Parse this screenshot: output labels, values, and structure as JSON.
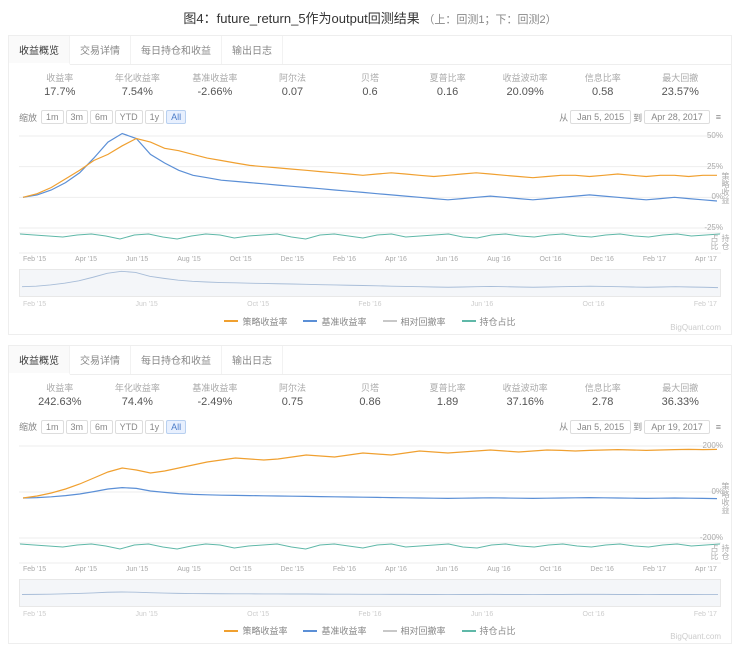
{
  "title_main": "图4：future_return_5作为output回测结果",
  "title_sub": "（上：回测1；下：回测2）",
  "tabs": [
    "收益概览",
    "交易详情",
    "每日持仓和收益",
    "输出日志"
  ],
  "range_label": "缩放",
  "range_buttons": [
    "1m",
    "3m",
    "6m",
    "YTD",
    "1y",
    "All"
  ],
  "range_active": "All",
  "date_from_lbl": "从",
  "date_to_lbl": "到",
  "watermark": "BigQuant.com",
  "metric_labels": [
    "收益率",
    "年化收益率",
    "基准收益率",
    "阿尔法",
    "贝塔",
    "夏普比率",
    "收益波动率",
    "信息比率",
    "最大回撤"
  ],
  "legend_items": [
    {
      "label": "策略收益率",
      "color": "#f0a030"
    },
    {
      "label": "基准收益率",
      "color": "#5b8fd6"
    },
    {
      "label": "相对回撤率",
      "color": "#c8c8c8"
    },
    {
      "label": "持仓占比",
      "color": "#5fb8a8"
    }
  ],
  "xaxis_ticks": [
    "Feb '15",
    "Apr '15",
    "Jun '15",
    "Aug '15",
    "Oct '15",
    "Dec '15",
    "Feb '16",
    "Apr '16",
    "Jun '16",
    "Aug '16",
    "Oct '16",
    "Dec '16",
    "Feb '17",
    "Apr '17"
  ],
  "colors": {
    "strategy": "#f0a030",
    "benchmark": "#5b8fd6",
    "holding": "#5fb8a8",
    "grid": "#eeeeee",
    "nav_line": "#a8bdd8",
    "nav_bg": "#f4f6f9"
  },
  "panels": [
    {
      "metrics": [
        "17.7%",
        "7.54%",
        "-2.66%",
        "0.07",
        "0.6",
        "0.16",
        "20.09%",
        "0.58",
        "23.57%"
      ],
      "date_from": "Jan 5, 2015",
      "date_to": "Apr 28, 2017",
      "yticks": [
        "50%",
        "25%",
        "0%",
        "-25%"
      ],
      "side_label": "策略收益",
      "sub_side_label": "持仓占比",
      "strategy_series": [
        0,
        3,
        8,
        15,
        22,
        30,
        35,
        42,
        48,
        45,
        40,
        38,
        35,
        32,
        30,
        28,
        26,
        25,
        24,
        23,
        22,
        21,
        20,
        19,
        18,
        19,
        20,
        19,
        18,
        17,
        18,
        19,
        20,
        19,
        18,
        17,
        16,
        17,
        18,
        18,
        17,
        18,
        19,
        18,
        17,
        18,
        18,
        17,
        18,
        18
      ],
      "benchmark_series": [
        0,
        2,
        6,
        12,
        20,
        32,
        45,
        52,
        48,
        35,
        28,
        22,
        18,
        16,
        14,
        13,
        12,
        11,
        10,
        9,
        8,
        7,
        6,
        5,
        4,
        3,
        2,
        1,
        0,
        -1,
        -2,
        -1,
        0,
        1,
        0,
        -1,
        -2,
        -1,
        0,
        1,
        2,
        1,
        0,
        -1,
        -2,
        -1,
        0,
        -1,
        -2,
        -3
      ],
      "ylim": [
        -25,
        50
      ],
      "holding_series": [
        95,
        90,
        85,
        80,
        90,
        95,
        85,
        70,
        90,
        95,
        80,
        70,
        85,
        95,
        90,
        75,
        85,
        90,
        95,
        80,
        70,
        90,
        95,
        85,
        75,
        90,
        95,
        80,
        85,
        90,
        95,
        80,
        75,
        90,
        95,
        85,
        80,
        90,
        95,
        85,
        80,
        90,
        95,
        85,
        80,
        90,
        95,
        85,
        90,
        95
      ]
    },
    {
      "metrics": [
        "242.63%",
        "74.4%",
        "-2.49%",
        "0.75",
        "0.86",
        "1.89",
        "37.16%",
        "2.78",
        "36.33%"
      ],
      "date_from": "Jan 5, 2015",
      "date_to": "Apr 19, 2017",
      "yticks": [
        "200%",
        "0%",
        "-200%"
      ],
      "side_label": "策略收益",
      "sub_side_label": "持仓占比",
      "strategy_series": [
        0,
        10,
        25,
        45,
        70,
        100,
        130,
        150,
        140,
        125,
        135,
        150,
        165,
        180,
        190,
        200,
        195,
        190,
        195,
        205,
        215,
        210,
        205,
        215,
        225,
        220,
        215,
        225,
        235,
        230,
        225,
        230,
        235,
        240,
        235,
        230,
        235,
        240,
        238,
        235,
        238,
        240,
        242,
        240,
        238,
        240,
        242,
        243,
        242,
        243
      ],
      "benchmark_series": [
        0,
        2,
        6,
        12,
        20,
        32,
        45,
        52,
        48,
        35,
        28,
        22,
        18,
        16,
        14,
        13,
        12,
        11,
        10,
        9,
        8,
        7,
        6,
        5,
        4,
        3,
        2,
        1,
        0,
        -1,
        -2,
        -1,
        0,
        1,
        0,
        -1,
        -2,
        -1,
        0,
        1,
        2,
        1,
        0,
        -1,
        -2,
        -1,
        0,
        -1,
        -2,
        -3
      ],
      "ylim": [
        -200,
        260
      ],
      "holding_series": [
        95,
        90,
        85,
        80,
        90,
        95,
        85,
        70,
        90,
        95,
        80,
        70,
        85,
        95,
        90,
        75,
        85,
        90,
        95,
        80,
        70,
        90,
        95,
        85,
        75,
        90,
        95,
        80,
        85,
        90,
        95,
        80,
        75,
        90,
        95,
        85,
        80,
        90,
        95,
        85,
        80,
        90,
        95,
        85,
        80,
        90,
        95,
        85,
        90,
        95
      ]
    }
  ]
}
